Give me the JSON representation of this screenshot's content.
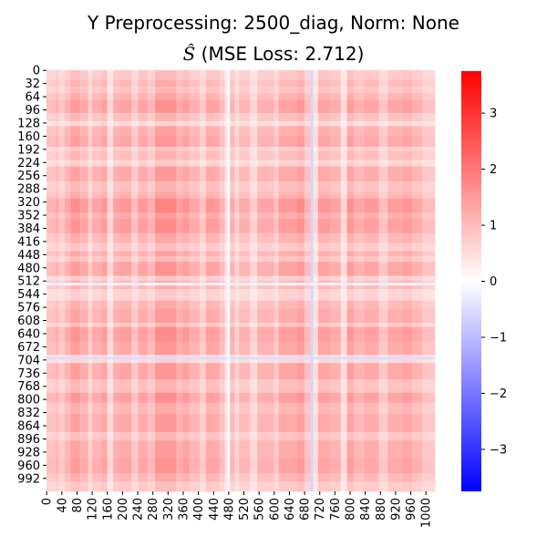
{
  "chart_data": {
    "type": "heatmap",
    "title": "Y Preprocessing: 2500_diag, Norm: None",
    "subtitle_symbol": "Ŝ",
    "subtitle_text": "(MSE Loss: 2.712)",
    "matrix_size": 1024,
    "colormap": "bwr",
    "colors": {
      "low": "#0000ff",
      "mid": "#ffffff",
      "high": "#ff0000"
    },
    "color_range": [
      -3.75,
      3.75
    ],
    "colorbar_ticks": [
      3,
      2,
      1,
      0,
      -1,
      -2,
      -3
    ],
    "colorbar_tick_labels": [
      "3",
      "2",
      "1",
      "0",
      "−1",
      "−2",
      "−3"
    ],
    "y_tick_labels": [
      "0",
      "32",
      "64",
      "96",
      "128",
      "160",
      "192",
      "224",
      "256",
      "288",
      "320",
      "352",
      "384",
      "416",
      "448",
      "480",
      "512",
      "544",
      "576",
      "608",
      "640",
      "672",
      "704",
      "736",
      "768",
      "800",
      "832",
      "864",
      "896",
      "928",
      "960",
      "992"
    ],
    "x_tick_labels": [
      "0",
      "40",
      "80",
      "120",
      "160",
      "200",
      "240",
      "280",
      "320",
      "360",
      "400",
      "440",
      "480",
      "520",
      "560",
      "600",
      "640",
      "680",
      "720",
      "760",
      "800",
      "840",
      "880",
      "920",
      "960",
      "1000"
    ],
    "y_tick_values": [
      0,
      32,
      64,
      96,
      128,
      160,
      192,
      224,
      256,
      288,
      320,
      352,
      384,
      416,
      448,
      480,
      512,
      544,
      576,
      608,
      640,
      672,
      704,
      736,
      768,
      800,
      832,
      864,
      896,
      928,
      960,
      992
    ],
    "x_tick_values": [
      0,
      40,
      80,
      120,
      160,
      200,
      240,
      280,
      320,
      360,
      400,
      440,
      480,
      520,
      560,
      600,
      640,
      680,
      720,
      760,
      800,
      840,
      880,
      920,
      960,
      1000
    ],
    "row_profile": [
      {
        "from": 0,
        "to": 24,
        "v": 0.55
      },
      {
        "from": 24,
        "to": 40,
        "v": 0.85
      },
      {
        "from": 40,
        "to": 56,
        "v": 0.6
      },
      {
        "from": 56,
        "to": 72,
        "v": 1.0
      },
      {
        "from": 72,
        "to": 104,
        "v": 1.45
      },
      {
        "from": 104,
        "to": 124,
        "v": 0.7
      },
      {
        "from": 124,
        "to": 136,
        "v": 0.25
      },
      {
        "from": 136,
        "to": 160,
        "v": 1.1
      },
      {
        "from": 160,
        "to": 186,
        "v": 1.35
      },
      {
        "from": 186,
        "to": 196,
        "v": 0.45
      },
      {
        "from": 196,
        "to": 218,
        "v": 0.75
      },
      {
        "from": 218,
        "to": 234,
        "v": 0.35
      },
      {
        "from": 234,
        "to": 270,
        "v": 1.25
      },
      {
        "from": 270,
        "to": 296,
        "v": 0.7
      },
      {
        "from": 296,
        "to": 312,
        "v": 1.0
      },
      {
        "from": 312,
        "to": 346,
        "v": 1.85
      },
      {
        "from": 346,
        "to": 362,
        "v": 1.2
      },
      {
        "from": 362,
        "to": 396,
        "v": 1.65
      },
      {
        "from": 396,
        "to": 420,
        "v": 0.95
      },
      {
        "from": 420,
        "to": 440,
        "v": 0.5
      },
      {
        "from": 440,
        "to": 452,
        "v": 1.1
      },
      {
        "from": 452,
        "to": 466,
        "v": 0.6
      },
      {
        "from": 466,
        "to": 500,
        "v": 1.45
      },
      {
        "from": 500,
        "to": 512,
        "v": 0.4
      },
      {
        "from": 512,
        "to": 532,
        "v": 0.85
      },
      {
        "from": 532,
        "to": 560,
        "v": 0.35
      },
      {
        "from": 560,
        "to": 580,
        "v": 0.9
      },
      {
        "from": 580,
        "to": 614,
        "v": 1.2
      },
      {
        "from": 614,
        "to": 624,
        "v": 0.55
      },
      {
        "from": 624,
        "to": 660,
        "v": 1.6
      },
      {
        "from": 660,
        "to": 692,
        "v": 1.3
      },
      {
        "from": 692,
        "to": 712,
        "v": 0.3
      },
      {
        "from": 712,
        "to": 752,
        "v": 1.35
      },
      {
        "from": 752,
        "to": 784,
        "v": 0.7
      },
      {
        "from": 784,
        "to": 808,
        "v": 1.55
      },
      {
        "from": 808,
        "to": 836,
        "v": 0.9
      },
      {
        "from": 836,
        "to": 880,
        "v": 1.25
      },
      {
        "from": 880,
        "to": 900,
        "v": 0.6
      },
      {
        "from": 900,
        "to": 944,
        "v": 1.2
      },
      {
        "from": 944,
        "to": 980,
        "v": 1.4
      },
      {
        "from": 980,
        "to": 1000,
        "v": 0.9
      },
      {
        "from": 1000,
        "to": 1024,
        "v": 0.5
      }
    ],
    "col_profile": [
      {
        "from": 0,
        "to": 24,
        "v": 0.65
      },
      {
        "from": 24,
        "to": 32,
        "v": 0.9
      },
      {
        "from": 32,
        "to": 48,
        "v": 0.5
      },
      {
        "from": 48,
        "to": 64,
        "v": 0.95
      },
      {
        "from": 64,
        "to": 88,
        "v": 1.55
      },
      {
        "from": 88,
        "to": 110,
        "v": 1.1
      },
      {
        "from": 110,
        "to": 120,
        "v": 0.4
      },
      {
        "from": 120,
        "to": 146,
        "v": 1.0
      },
      {
        "from": 146,
        "to": 160,
        "v": 1.35
      },
      {
        "from": 160,
        "to": 176,
        "v": 0.25
      },
      {
        "from": 176,
        "to": 194,
        "v": 1.1
      },
      {
        "from": 194,
        "to": 224,
        "v": 1.3
      },
      {
        "from": 224,
        "to": 242,
        "v": 0.55
      },
      {
        "from": 242,
        "to": 266,
        "v": 1.25
      },
      {
        "from": 266,
        "to": 286,
        "v": 0.8
      },
      {
        "from": 286,
        "to": 342,
        "v": 1.8
      },
      {
        "from": 342,
        "to": 360,
        "v": 1.1
      },
      {
        "from": 360,
        "to": 376,
        "v": 1.45
      },
      {
        "from": 376,
        "to": 404,
        "v": 0.95
      },
      {
        "from": 404,
        "to": 420,
        "v": 0.45
      },
      {
        "from": 420,
        "to": 440,
        "v": 1.3
      },
      {
        "from": 440,
        "to": 456,
        "v": 1.2
      },
      {
        "from": 456,
        "to": 470,
        "v": 0.7
      },
      {
        "from": 470,
        "to": 484,
        "v": 0.15
      },
      {
        "from": 484,
        "to": 496,
        "v": 0.9
      },
      {
        "from": 496,
        "to": 508,
        "v": 0.35
      },
      {
        "from": 508,
        "to": 536,
        "v": 0.85
      },
      {
        "from": 536,
        "to": 556,
        "v": 0.3
      },
      {
        "from": 556,
        "to": 600,
        "v": 0.95
      },
      {
        "from": 600,
        "to": 612,
        "v": 0.5
      },
      {
        "from": 612,
        "to": 660,
        "v": 1.25
      },
      {
        "from": 660,
        "to": 680,
        "v": 1.6
      },
      {
        "from": 680,
        "to": 700,
        "v": 0.7
      },
      {
        "from": 700,
        "to": 716,
        "v": 0.2
      },
      {
        "from": 716,
        "to": 748,
        "v": 1.3
      },
      {
        "from": 748,
        "to": 776,
        "v": 1.0
      },
      {
        "from": 776,
        "to": 792,
        "v": 0.2
      },
      {
        "from": 792,
        "to": 810,
        "v": 1.45
      },
      {
        "from": 810,
        "to": 838,
        "v": 0.9
      },
      {
        "from": 838,
        "to": 876,
        "v": 1.2
      },
      {
        "from": 876,
        "to": 900,
        "v": 0.5
      },
      {
        "from": 900,
        "to": 940,
        "v": 1.15
      },
      {
        "from": 940,
        "to": 964,
        "v": 1.35
      },
      {
        "from": 964,
        "to": 990,
        "v": 0.95
      },
      {
        "from": 990,
        "to": 1024,
        "v": 0.55
      }
    ],
    "negative_lines": [
      {
        "axis": "col",
        "at": 700,
        "v": -0.6
      },
      {
        "axis": "row",
        "at": 700,
        "v": -0.5
      },
      {
        "axis": "col",
        "at": 480,
        "v": -0.15
      },
      {
        "axis": "row",
        "at": 520,
        "v": -0.2
      }
    ]
  }
}
